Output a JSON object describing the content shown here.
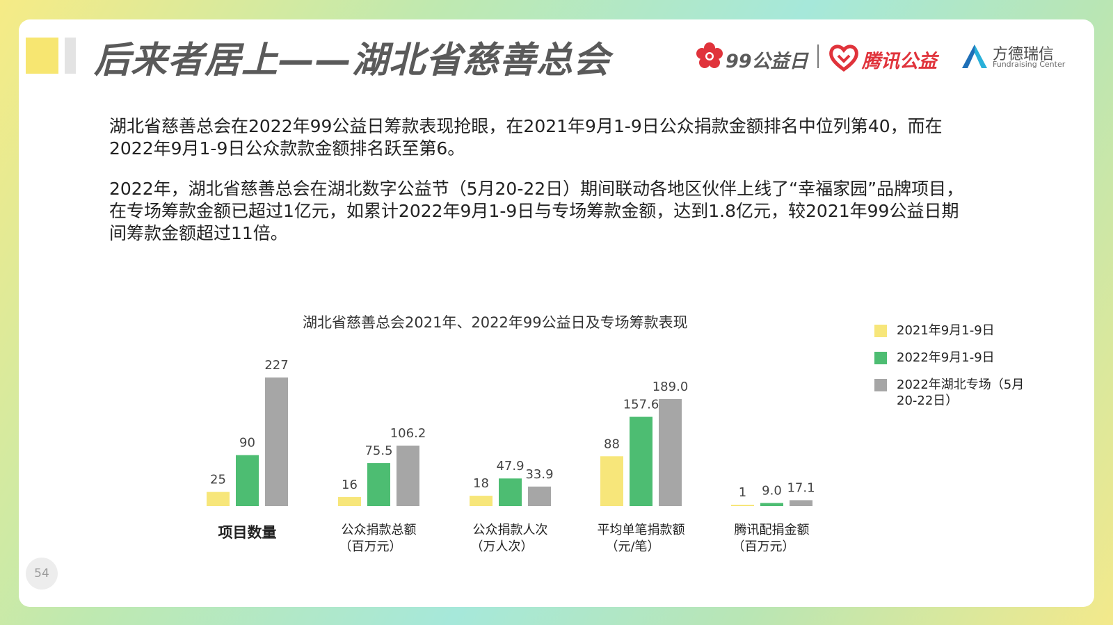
{
  "header": {
    "title": "后来者居上——湖北省慈善总会",
    "logos": {
      "ninety_nine": "99公益日",
      "tencent": "腾讯公益",
      "fangde_cn": "方德瑞信",
      "fangde_en": "Fundraising Center"
    }
  },
  "body": {
    "paragraphs": [
      "湖北省慈善总会在2022年99公益日筹款表现抢眼，在2021年9月1-9日公众捐款金额排名中位列第40，而在2022年9月1-9日公众款款金额排名跃至第6。",
      "2022年，湖北省慈善总会在湖北数字公益节（5月20-22日）期间联动各地区伙伴上线了“幸福家园”品牌项目，在专场筹款金额已超过1亿元，如累计2022年9月1-9日与专场筹款金额，达到1.8亿元，较2021年99公益日期间筹款金额超过11倍。"
    ]
  },
  "page_number": "54",
  "colors": {
    "series_2021": "#f7e67a",
    "series_2022": "#4dbd72",
    "series_special": "#a6a6a6",
    "title_text": "#5a5a5a",
    "brand_red": "#e0333b",
    "brand_blue": "#1f6fb7"
  },
  "chart_data": {
    "type": "bar",
    "title": "湖北省慈善总会2021年、2022年99公益日及专场筹款表现",
    "legend_position": "right",
    "grid": false,
    "categories": [
      [
        "项目数量"
      ],
      [
        "公众捐款总额",
        "（百万元）"
      ],
      [
        "公众捐款人次",
        "（万人次）"
      ],
      [
        "平均单笔捐款额",
        "（元/笔）"
      ],
      [
        "腾讯配捐金额",
        "（百万元）"
      ]
    ],
    "series": [
      {
        "name": "2021年9月1-9日",
        "values": [
          25,
          16,
          18,
          88,
          1
        ],
        "labels": [
          "25",
          "16",
          "18",
          "88",
          "1"
        ]
      },
      {
        "name": "2022年9月1-9日",
        "values": [
          90,
          75.5,
          47.9,
          157.6,
          9.0
        ],
        "labels": [
          "90",
          "75.5",
          "47.9",
          "157.6",
          "9.0"
        ]
      },
      {
        "name": "2022年湖北专场（5月20-22日）",
        "values": [
          227,
          106.2,
          33.9,
          189.0,
          17.1
        ],
        "labels": [
          "227",
          "106.2",
          "33.9",
          "189.0",
          "17.1"
        ]
      }
    ]
  }
}
